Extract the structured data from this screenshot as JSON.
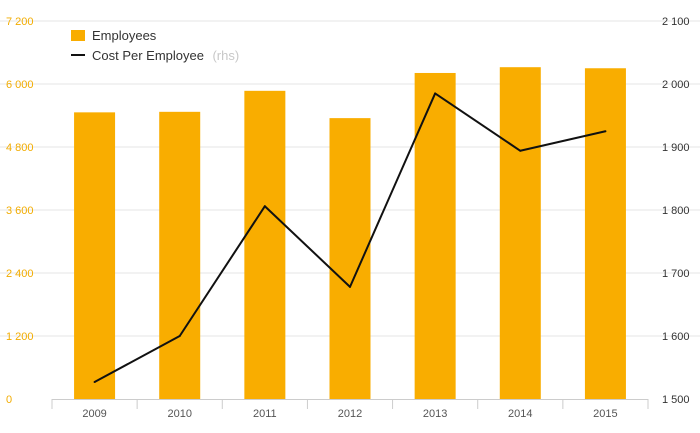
{
  "chart_data": {
    "type": "bar",
    "categories": [
      "2009",
      "2010",
      "2011",
      "2012",
      "2013",
      "2014",
      "2015"
    ],
    "series": [
      {
        "name": "Employees",
        "kind": "bar",
        "axis": "left",
        "values": [
          5460,
          5470,
          5870,
          5350,
          6210,
          6320,
          6300
        ]
      },
      {
        "name": "Cost Per Employee",
        "name_suffix": "(rhs)",
        "kind": "line",
        "axis": "right",
        "values": [
          1527,
          1600,
          1806,
          1678,
          1985,
          1894,
          1925
        ]
      }
    ],
    "left_axis": {
      "ylim": [
        0,
        7200
      ],
      "ticks": [
        0,
        1200,
        2400,
        3600,
        4800,
        6000,
        7200
      ],
      "tick_labels": [
        "0",
        "1 200",
        "2 400",
        "3 600",
        "4 800",
        "6 000",
        "7 200"
      ]
    },
    "right_axis": {
      "ylim": [
        1500,
        2100
      ],
      "ticks": [
        1500,
        1600,
        1700,
        1800,
        1900,
        2000,
        2100
      ],
      "tick_labels": [
        "1 500",
        "1 600",
        "1 700",
        "1 800",
        "1 900",
        "2 000",
        "2 100"
      ]
    },
    "grid": true,
    "legend_position": "top-left",
    "colors": {
      "bar": "#f9ad00",
      "line": "#111111",
      "left_axis_text": "#f2ac00",
      "grid": "#e6e6e6"
    }
  }
}
